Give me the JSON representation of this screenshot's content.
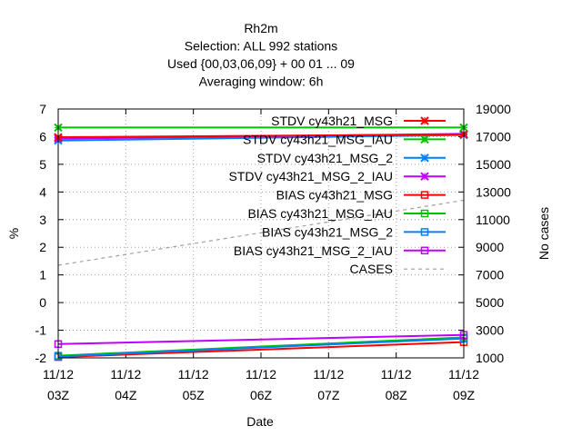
{
  "chart_data": {
    "type": "line",
    "title_lines": [
      "Rh2m",
      "Selection: ALL    992 stations",
      "Used {00,03,06,09} + 00 01 ... 09",
      "Averaging window:  6h"
    ],
    "xlabel": "Date",
    "ylabel": "%",
    "y2label": "No cases",
    "x_ticks": [
      {
        "top": "11/12",
        "bottom": "03Z"
      },
      {
        "top": "11/12",
        "bottom": "04Z"
      },
      {
        "top": "11/12",
        "bottom": "05Z"
      },
      {
        "top": "11/12",
        "bottom": "06Z"
      },
      {
        "top": "11/12",
        "bottom": "07Z"
      },
      {
        "top": "11/12",
        "bottom": "08Z"
      },
      {
        "top": "11/12",
        "bottom": "09Z"
      }
    ],
    "xlim": [
      3,
      9
    ],
    "ylim": [
      -2,
      7
    ],
    "y_ticks": [
      -2,
      -1,
      0,
      1,
      2,
      3,
      4,
      5,
      6,
      7
    ],
    "y2lim": [
      1000,
      19000
    ],
    "y2_ticks": [
      1000,
      3000,
      5000,
      7000,
      9000,
      11000,
      13000,
      15000,
      17000,
      19000
    ],
    "grid": true,
    "legend_position": "top-right",
    "x": [
      3,
      9
    ],
    "series": [
      {
        "name": "STDV cy43h21_MSG",
        "color": "#ff0000",
        "marker": "x",
        "values": [
          5.98,
          6.08
        ]
      },
      {
        "name": "STDV cy43h21_MSG_IAU",
        "color": "#00c000",
        "marker": "x",
        "values": [
          6.33,
          6.33
        ]
      },
      {
        "name": "STDV cy43h21_MSG_2",
        "color": "#0080ff",
        "marker": "x",
        "values": [
          5.86,
          6.06
        ]
      },
      {
        "name": "STDV cy43h21_MSG_2_IAU",
        "color": "#c000ff",
        "marker": "x",
        "values": [
          5.93,
          6.1
        ]
      },
      {
        "name": "BIAS cy43h21_MSG",
        "color": "#ff0000",
        "marker": "square",
        "values": [
          -1.97,
          -1.43
        ]
      },
      {
        "name": "BIAS cy43h21_MSG_IAU",
        "color": "#00c000",
        "marker": "square",
        "values": [
          -1.92,
          -1.26
        ]
      },
      {
        "name": "BIAS cy43h21_MSG_2",
        "color": "#0080ff",
        "marker": "square",
        "values": [
          -1.95,
          -1.3
        ]
      },
      {
        "name": "BIAS cy43h21_MSG_2_IAU",
        "color": "#c000ff",
        "marker": "square",
        "values": [
          -1.5,
          -1.17
        ]
      },
      {
        "name": "CASES",
        "color": "#a0a0a0",
        "marker": "none",
        "dashed": true,
        "axis": "y2",
        "values": [
          7700,
          12400
        ]
      }
    ]
  }
}
